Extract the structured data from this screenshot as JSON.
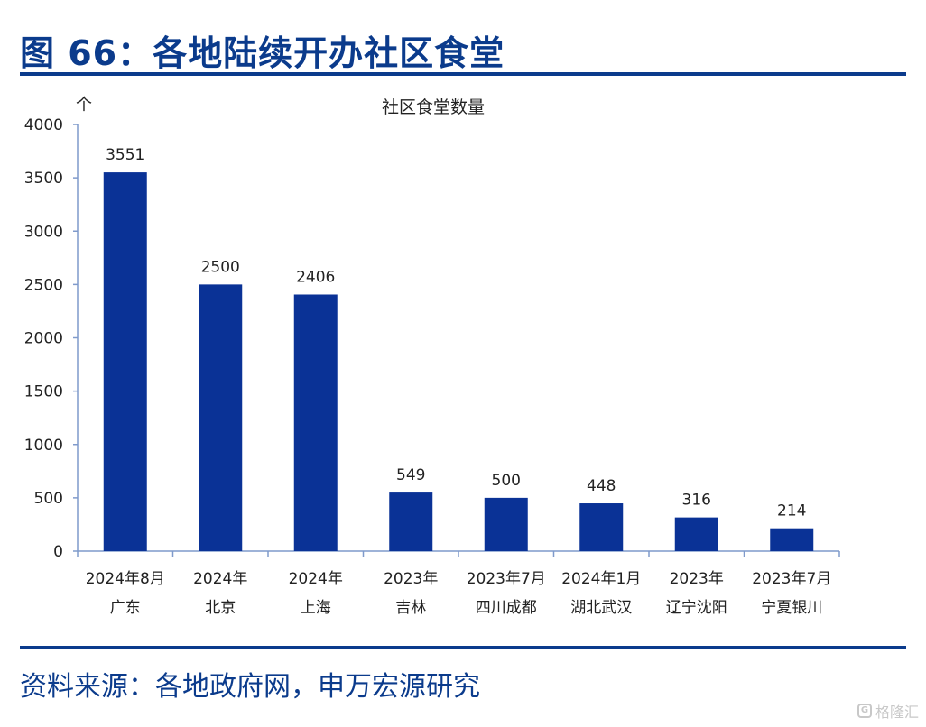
{
  "header": {
    "title": "图 66：各地陆续开办社区食堂"
  },
  "footer": {
    "source": "资料来源：各地政府网，申万宏源研究",
    "watermark_text": "格隆汇"
  },
  "colors": {
    "accent": "#0b3b8c",
    "bar": "#0a3296",
    "axis": "#7f9acb"
  },
  "chart_data": {
    "type": "bar",
    "title": "社区食堂数量",
    "ylabel": "个",
    "xlabel": "",
    "ylim": [
      0,
      4000
    ],
    "yticks": [
      0,
      500,
      1000,
      1500,
      2000,
      2500,
      3000,
      3500,
      4000
    ],
    "grid": false,
    "categories": [
      [
        "2024年8月",
        "广东"
      ],
      [
        "2024年",
        "北京"
      ],
      [
        "2024年",
        "上海"
      ],
      [
        "2023年",
        "吉林"
      ],
      [
        "2023年7月",
        "四川成都"
      ],
      [
        "2024年1月",
        "湖北武汉"
      ],
      [
        "2023年",
        "辽宁沈阳"
      ],
      [
        "2023年7月",
        "宁夏银川"
      ]
    ],
    "series": [
      {
        "name": "社区食堂数量",
        "values": [
          3551,
          2500,
          2406,
          549,
          500,
          448,
          316,
          214
        ]
      }
    ]
  }
}
